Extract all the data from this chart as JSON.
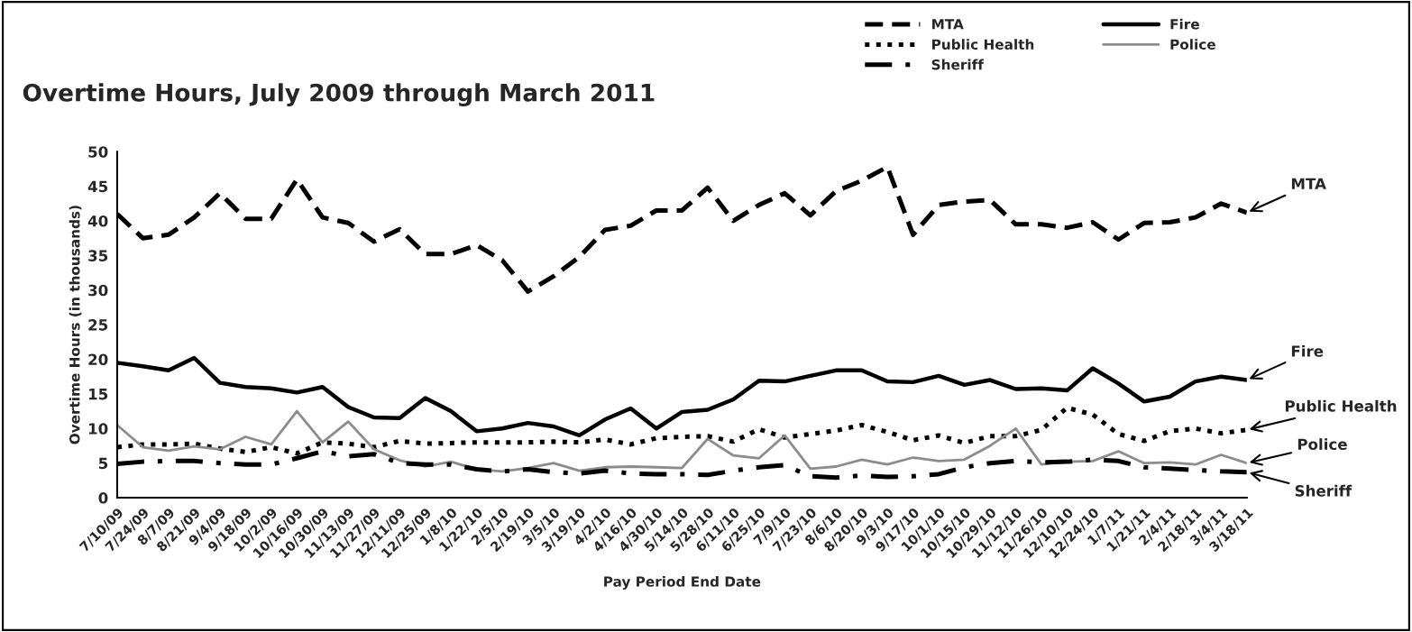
{
  "chart_data": {
    "type": "line",
    "title": "Overtime Hours, July 2009 through March 2011",
    "xlabel": "Pay Period End Date",
    "ylabel": "Overtime Hours (in thousands)",
    "categories": [
      "7/10/09",
      "7/24/09",
      "8/7/09",
      "8/21/09",
      "9/4/09",
      "9/18/09",
      "10/2/09",
      "10/16/09",
      "10/30/09",
      "11/13/09",
      "11/27/09",
      "12/11/09",
      "12/25/09",
      "1/8/10",
      "1/22/10",
      "2/5/10",
      "2/19/10",
      "3/5/10",
      "3/19/10",
      "4/2/10",
      "4/16/10",
      "4/30/10",
      "5/14/10",
      "5/28/10",
      "6/11/10",
      "6/25/10",
      "7/9/10",
      "7/23/10",
      "8/6/10",
      "8/20/10",
      "9/3/10",
      "9/17/10",
      "10/1/10",
      "10/15/10",
      "10/29/10",
      "11/12/10",
      "11/26/10",
      "12/10/10",
      "12/24/10",
      "1/7/11",
      "1/21/11",
      "2/4/11",
      "2/18/11",
      "3/4/11",
      "3/18/11"
    ],
    "series": [
      {
        "name": "MTA",
        "color": "#000000",
        "line_style": "dashed",
        "values": [
          41,
          37.5,
          38,
          40.5,
          44,
          40.3,
          40.3,
          46,
          40.5,
          39.7,
          37,
          38.8,
          35.2,
          35.2,
          36.5,
          34.3,
          29.8,
          32,
          34.8,
          38.7,
          39.3,
          41.5,
          41.5,
          44.8,
          40,
          42.3,
          44,
          40.8,
          44.3,
          45.8,
          47.8,
          38,
          42.3,
          42.8,
          43,
          39.5,
          39.5,
          39,
          39.8,
          37.3,
          39.7,
          39.8,
          40.5,
          42.5,
          41.2
        ]
      },
      {
        "name": "Fire",
        "color": "#000000",
        "line_style": "solid",
        "values": [
          19.5,
          19,
          18.4,
          20.2,
          16.6,
          16,
          15.8,
          15.2,
          16,
          13.1,
          11.6,
          11.5,
          14.4,
          12.5,
          9.6,
          10,
          10.8,
          10.3,
          9,
          11.3,
          12.9,
          10,
          12.4,
          12.7,
          14.2,
          16.9,
          16.8,
          17.6,
          18.4,
          18.4,
          16.8,
          16.7,
          17.6,
          16.3,
          17,
          15.7,
          15.8,
          15.5,
          18.7,
          16.5,
          13.9,
          14.6,
          16.8,
          17.5,
          17
        ]
      },
      {
        "name": "Public Health",
        "color": "#000000",
        "line_style": "dotted",
        "values": [
          7.3,
          7.7,
          7.7,
          7.8,
          7.1,
          6.6,
          7.3,
          6.4,
          8,
          7.8,
          7.3,
          8.2,
          7.8,
          7.9,
          8,
          8,
          8,
          8.1,
          8,
          8.4,
          7.7,
          8.6,
          8.8,
          8.9,
          8.1,
          9.9,
          8.7,
          9.2,
          9.7,
          10.5,
          9.5,
          8.3,
          9,
          7.9,
          8.9,
          8.9,
          9.8,
          13,
          12,
          9.2,
          8.2,
          9.6,
          10,
          9.3,
          9.8
        ]
      },
      {
        "name": "Police",
        "color": "#8c8c8c",
        "line_style": "solid",
        "values": [
          10.5,
          7.3,
          6.8,
          7.4,
          7,
          8.8,
          7.7,
          12.5,
          8,
          11,
          7,
          5.4,
          4.5,
          5.2,
          4.1,
          3.8,
          4.3,
          5,
          3.9,
          4.4,
          4.5,
          4.4,
          4.3,
          8.5,
          6.1,
          5.7,
          9,
          4.2,
          4.5,
          5.5,
          4.8,
          5.8,
          5.3,
          5.5,
          7.5,
          10,
          4.8,
          5.2,
          5.3,
          6.7,
          5,
          5.1,
          4.8,
          6.2,
          5
        ]
      },
      {
        "name": "Sheriff",
        "color": "#000000",
        "line_style": "dashdot",
        "values": [
          4.9,
          5.2,
          5.3,
          5.3,
          5,
          4.8,
          4.8,
          5.7,
          6.7,
          6,
          6.3,
          5,
          4.8,
          4.8,
          4.1,
          3.8,
          4.1,
          3.7,
          3.5,
          3.9,
          3.5,
          3.4,
          3.4,
          3.3,
          3.9,
          4.4,
          4.7,
          3.1,
          2.9,
          3.2,
          3,
          3.1,
          3.4,
          4.4,
          5,
          5.3,
          5.1,
          5.2,
          5.5,
          5.3,
          4.4,
          4.2,
          4,
          3.8,
          3.7
        ]
      }
    ],
    "annotations": [
      {
        "text": "MTA",
        "x": "3/18/11",
        "y": 41.2
      },
      {
        "text": "Fire",
        "x": "3/18/11",
        "y": 17
      },
      {
        "text": "Public Health",
        "x": "3/18/11",
        "y": 9.8
      },
      {
        "text": "Police",
        "x": "3/18/11",
        "y": 5
      },
      {
        "text": "Sheriff",
        "x": "3/18/11",
        "y": 3.7
      }
    ],
    "ylim": [
      0,
      50
    ],
    "yticks": [
      0,
      5,
      10,
      15,
      20,
      25,
      30,
      35,
      40,
      45,
      50
    ],
    "grid": false,
    "legend": "top right"
  }
}
